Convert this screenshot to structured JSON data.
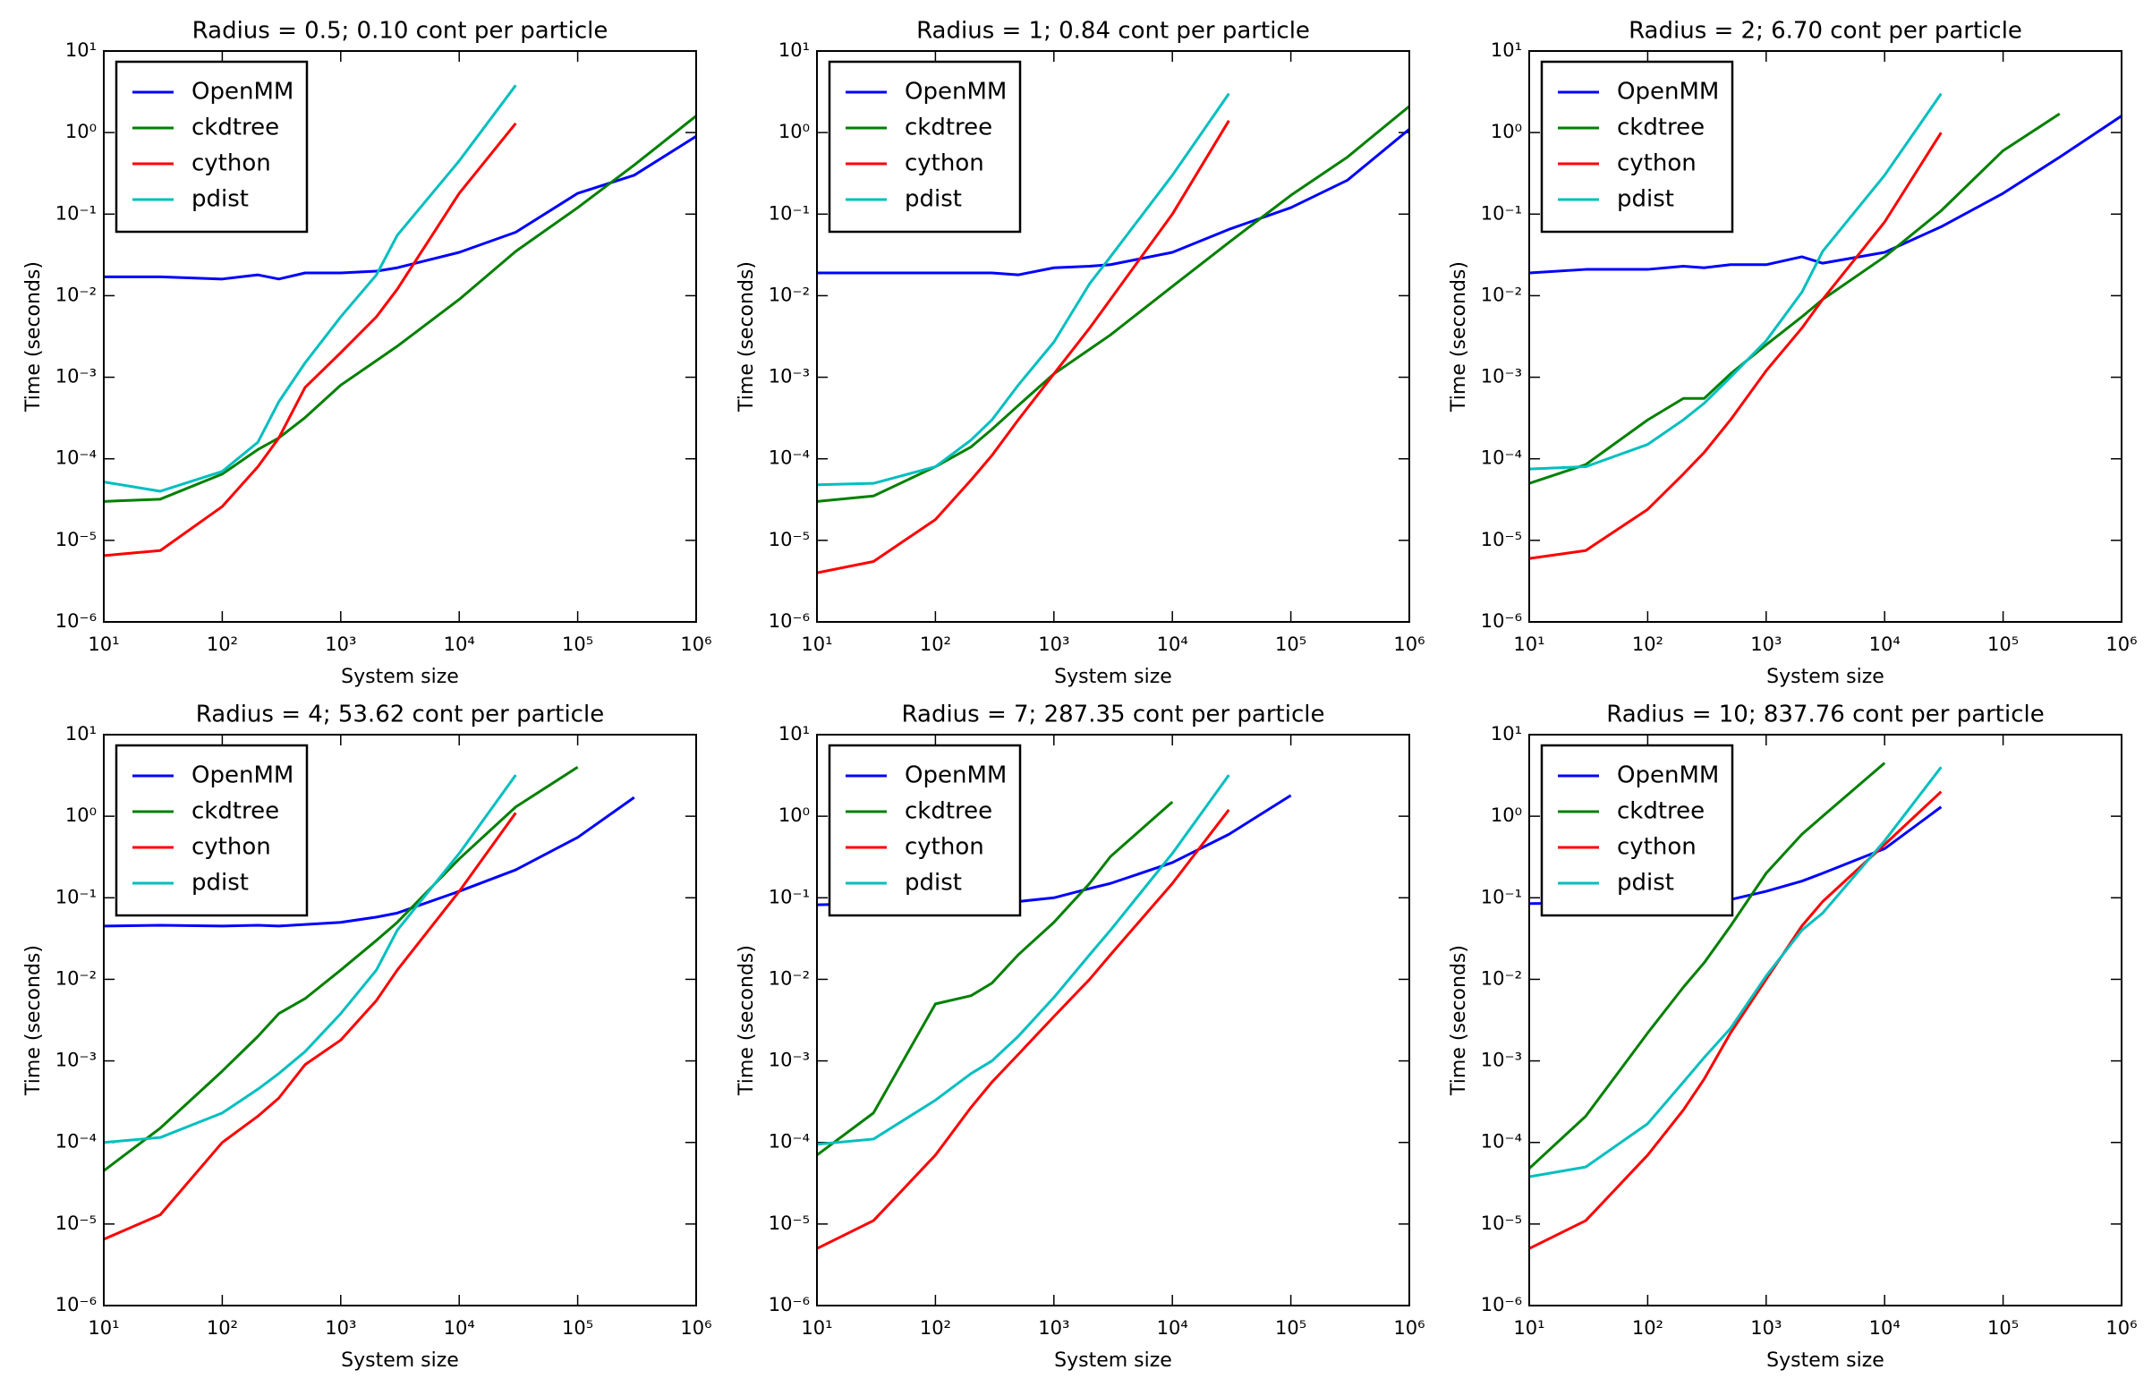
{
  "chart_data": [
    {
      "type": "line",
      "title": "Radius = 0.5; 0.10 cont per particle",
      "xlabel": "System size",
      "ylabel": "Time (seconds)",
      "log_x": true,
      "log_y": true,
      "grid": false,
      "legend": "upper left",
      "xlim": [
        10,
        1000000
      ],
      "ylim": [
        1e-06,
        10
      ],
      "xticks": [
        {
          "value": 10,
          "label": "10¹"
        },
        {
          "value": 100,
          "label": "10²"
        },
        {
          "value": 1000,
          "label": "10³"
        },
        {
          "value": 10000,
          "label": "10⁴"
        },
        {
          "value": 100000,
          "label": "10⁵"
        },
        {
          "value": 1000000,
          "label": "10⁶"
        }
      ],
      "yticks": [
        {
          "value": 1e-06,
          "label": "10⁻⁶"
        },
        {
          "value": 1e-05,
          "label": "10⁻⁵"
        },
        {
          "value": 0.0001,
          "label": "10⁻⁴"
        },
        {
          "value": 0.001,
          "label": "10⁻³"
        },
        {
          "value": 0.01,
          "label": "10⁻²"
        },
        {
          "value": 0.1,
          "label": "10⁻¹"
        },
        {
          "value": 1,
          "label": "10⁰"
        },
        {
          "value": 10,
          "label": "10¹"
        }
      ],
      "x": [
        10,
        30,
        100,
        200,
        300,
        500,
        1000,
        2000,
        3000,
        10000,
        30000,
        100000,
        300000,
        1000000
      ],
      "series": [
        {
          "name": "OpenMM",
          "color": "#0000ff",
          "values": [
            0.017,
            0.017,
            0.016,
            0.018,
            0.016,
            0.019,
            0.019,
            0.02,
            0.022,
            0.034,
            0.06,
            0.18,
            0.3,
            0.9
          ]
        },
        {
          "name": "ckdtree",
          "color": "#008000",
          "values": [
            3e-05,
            3.2e-05,
            6.5e-05,
            0.00013,
            0.00018,
            0.00032,
            0.0008,
            0.0016,
            0.0024,
            0.009,
            0.035,
            0.12,
            0.4,
            1.6
          ]
        },
        {
          "name": "cython",
          "color": "#ff0000",
          "values": [
            6.5e-06,
            7.5e-06,
            2.6e-05,
            8e-05,
            0.00018,
            0.00075,
            0.002,
            0.0055,
            0.012,
            0.18,
            1.3,
            null,
            null,
            null
          ]
        },
        {
          "name": "pdist",
          "color": "#00bfbf",
          "values": [
            5.2e-05,
            4e-05,
            7e-05,
            0.00016,
            0.0005,
            0.0015,
            0.0055,
            0.018,
            0.055,
            0.45,
            3.8,
            null,
            null,
            null
          ]
        }
      ]
    },
    {
      "type": "line",
      "title": "Radius = 1; 0.84 cont per particle",
      "xlabel": "System size",
      "ylabel": "Time (seconds)",
      "log_x": true,
      "log_y": true,
      "grid": false,
      "legend": "upper left",
      "xlim": [
        10,
        1000000
      ],
      "ylim": [
        1e-06,
        10
      ],
      "xticks": [
        {
          "value": 10,
          "label": "10¹"
        },
        {
          "value": 100,
          "label": "10²"
        },
        {
          "value": 1000,
          "label": "10³"
        },
        {
          "value": 10000,
          "label": "10⁴"
        },
        {
          "value": 100000,
          "label": "10⁵"
        },
        {
          "value": 1000000,
          "label": "10⁶"
        }
      ],
      "yticks": [
        {
          "value": 1e-06,
          "label": "10⁻⁶"
        },
        {
          "value": 1e-05,
          "label": "10⁻⁵"
        },
        {
          "value": 0.0001,
          "label": "10⁻⁴"
        },
        {
          "value": 0.001,
          "label": "10⁻³"
        },
        {
          "value": 0.01,
          "label": "10⁻²"
        },
        {
          "value": 0.1,
          "label": "10⁻¹"
        },
        {
          "value": 1,
          "label": "10⁰"
        },
        {
          "value": 10,
          "label": "10¹"
        }
      ],
      "x": [
        10,
        30,
        100,
        200,
        300,
        500,
        1000,
        2000,
        3000,
        10000,
        30000,
        100000,
        300000,
        1000000
      ],
      "series": [
        {
          "name": "OpenMM",
          "color": "#0000ff",
          "values": [
            0.019,
            0.019,
            0.019,
            0.019,
            0.019,
            0.018,
            0.022,
            0.023,
            0.024,
            0.034,
            0.065,
            0.12,
            0.26,
            1.1
          ]
        },
        {
          "name": "ckdtree",
          "color": "#008000",
          "values": [
            3e-05,
            3.5e-05,
            8e-05,
            0.00014,
            0.00023,
            0.00045,
            0.0011,
            0.0022,
            0.0033,
            0.013,
            0.045,
            0.17,
            0.5,
            2.1
          ]
        },
        {
          "name": "cython",
          "color": "#ff0000",
          "values": [
            4e-06,
            5.5e-06,
            1.8e-05,
            5.5e-05,
            0.00011,
            0.0003,
            0.0011,
            0.004,
            0.009,
            0.1,
            1.4,
            null,
            null,
            null
          ]
        },
        {
          "name": "pdist",
          "color": "#00bfbf",
          "values": [
            4.8e-05,
            5e-05,
            8e-05,
            0.00017,
            0.0003,
            0.0008,
            0.0027,
            0.014,
            0.03,
            0.3,
            3,
            null,
            null,
            null
          ]
        }
      ]
    },
    {
      "type": "line",
      "title": "Radius = 2; 6.70 cont per particle",
      "xlabel": "System size",
      "ylabel": "Time (seconds)",
      "log_x": true,
      "log_y": true,
      "grid": false,
      "legend": "upper left",
      "xlim": [
        10,
        1000000
      ],
      "ylim": [
        1e-06,
        10
      ],
      "xticks": [
        {
          "value": 10,
          "label": "10¹"
        },
        {
          "value": 100,
          "label": "10²"
        },
        {
          "value": 1000,
          "label": "10³"
        },
        {
          "value": 10000,
          "label": "10⁴"
        },
        {
          "value": 100000,
          "label": "10⁵"
        },
        {
          "value": 1000000,
          "label": "10⁶"
        }
      ],
      "yticks": [
        {
          "value": 1e-06,
          "label": "10⁻⁶"
        },
        {
          "value": 1e-05,
          "label": "10⁻⁵"
        },
        {
          "value": 0.0001,
          "label": "10⁻⁴"
        },
        {
          "value": 0.001,
          "label": "10⁻³"
        },
        {
          "value": 0.01,
          "label": "10⁻²"
        },
        {
          "value": 0.1,
          "label": "10⁻¹"
        },
        {
          "value": 1,
          "label": "10⁰"
        },
        {
          "value": 10,
          "label": "10¹"
        }
      ],
      "x": [
        10,
        30,
        100,
        200,
        300,
        500,
        1000,
        2000,
        3000,
        10000,
        30000,
        100000,
        300000,
        1000000
      ],
      "series": [
        {
          "name": "OpenMM",
          "color": "#0000ff",
          "values": [
            0.019,
            0.021,
            0.021,
            0.023,
            0.022,
            0.024,
            0.024,
            0.03,
            0.025,
            0.034,
            0.07,
            0.18,
            0.5,
            1.6
          ]
        },
        {
          "name": "ckdtree",
          "color": "#008000",
          "values": [
            5e-05,
            8.5e-05,
            0.0003,
            0.00055,
            0.00055,
            0.0011,
            0.0025,
            0.0055,
            0.009,
            0.03,
            0.11,
            0.6,
            1.7,
            null
          ]
        },
        {
          "name": "cython",
          "color": "#ff0000",
          "values": [
            6e-06,
            7.5e-06,
            2.4e-05,
            6.5e-05,
            0.00012,
            0.0003,
            0.0012,
            0.004,
            0.009,
            0.08,
            1,
            null,
            null,
            null
          ]
        },
        {
          "name": "pdist",
          "color": "#00bfbf",
          "values": [
            7.5e-05,
            8e-05,
            0.00015,
            0.0003,
            0.00048,
            0.001,
            0.0028,
            0.011,
            0.035,
            0.3,
            3,
            null,
            null,
            null
          ]
        }
      ]
    },
    {
      "type": "line",
      "title": "Radius = 4; 53.62 cont per particle",
      "xlabel": "System size",
      "ylabel": "Time (seconds)",
      "log_x": true,
      "log_y": true,
      "grid": false,
      "legend": "upper left",
      "xlim": [
        10,
        1000000
      ],
      "ylim": [
        1e-06,
        10
      ],
      "xticks": [
        {
          "value": 10,
          "label": "10¹"
        },
        {
          "value": 100,
          "label": "10²"
        },
        {
          "value": 1000,
          "label": "10³"
        },
        {
          "value": 10000,
          "label": "10⁴"
        },
        {
          "value": 100000,
          "label": "10⁵"
        },
        {
          "value": 1000000,
          "label": "10⁶"
        }
      ],
      "yticks": [
        {
          "value": 1e-06,
          "label": "10⁻⁶"
        },
        {
          "value": 1e-05,
          "label": "10⁻⁵"
        },
        {
          "value": 0.0001,
          "label": "10⁻⁴"
        },
        {
          "value": 0.001,
          "label": "10⁻³"
        },
        {
          "value": 0.01,
          "label": "10⁻²"
        },
        {
          "value": 0.1,
          "label": "10⁻¹"
        },
        {
          "value": 1,
          "label": "10⁰"
        },
        {
          "value": 10,
          "label": "10¹"
        }
      ],
      "x": [
        10,
        30,
        100,
        200,
        300,
        500,
        1000,
        2000,
        3000,
        10000,
        30000,
        100000,
        300000,
        1000000
      ],
      "series": [
        {
          "name": "OpenMM",
          "color": "#0000ff",
          "values": [
            0.045,
            0.046,
            0.045,
            0.046,
            0.045,
            0.047,
            0.05,
            0.058,
            0.065,
            0.12,
            0.22,
            0.55,
            1.7,
            null
          ]
        },
        {
          "name": "ckdtree",
          "color": "#008000",
          "values": [
            4.5e-05,
            0.00015,
            0.00075,
            0.002,
            0.0038,
            0.0058,
            0.013,
            0.03,
            0.05,
            0.3,
            1.3,
            4,
            null,
            null
          ]
        },
        {
          "name": "cython",
          "color": "#ff0000",
          "values": [
            6.5e-06,
            1.3e-05,
            0.0001,
            0.00021,
            0.00035,
            0.0009,
            0.0018,
            0.0055,
            0.013,
            0.12,
            1.1,
            null,
            null,
            null
          ]
        },
        {
          "name": "pdist",
          "color": "#00bfbf",
          "values": [
            0.0001,
            0.000115,
            0.00023,
            0.00045,
            0.0007,
            0.0013,
            0.0038,
            0.013,
            0.04,
            0.35,
            3.2,
            null,
            null,
            null
          ]
        }
      ]
    },
    {
      "type": "line",
      "title": "Radius = 7; 287.35 cont per particle",
      "xlabel": "System size",
      "ylabel": "Time (seconds)",
      "log_x": true,
      "log_y": true,
      "grid": false,
      "legend": "upper left",
      "xlim": [
        10,
        1000000
      ],
      "ylim": [
        1e-06,
        10
      ],
      "xticks": [
        {
          "value": 10,
          "label": "10¹"
        },
        {
          "value": 100,
          "label": "10²"
        },
        {
          "value": 1000,
          "label": "10³"
        },
        {
          "value": 10000,
          "label": "10⁴"
        },
        {
          "value": 100000,
          "label": "10⁵"
        },
        {
          "value": 1000000,
          "label": "10⁶"
        }
      ],
      "yticks": [
        {
          "value": 1e-06,
          "label": "10⁻⁶"
        },
        {
          "value": 1e-05,
          "label": "10⁻⁵"
        },
        {
          "value": 0.0001,
          "label": "10⁻⁴"
        },
        {
          "value": 0.001,
          "label": "10⁻³"
        },
        {
          "value": 0.01,
          "label": "10⁻²"
        },
        {
          "value": 0.1,
          "label": "10⁻¹"
        },
        {
          "value": 1,
          "label": "10⁰"
        },
        {
          "value": 10,
          "label": "10¹"
        }
      ],
      "x": [
        10,
        30,
        100,
        200,
        300,
        500,
        1000,
        2000,
        3000,
        10000,
        30000,
        100000,
        300000,
        1000000
      ],
      "series": [
        {
          "name": "OpenMM",
          "color": "#0000ff",
          "values": [
            0.082,
            0.085,
            0.083,
            0.084,
            0.084,
            0.09,
            0.1,
            0.13,
            0.15,
            0.27,
            0.6,
            1.8,
            null,
            null
          ]
        },
        {
          "name": "ckdtree",
          "color": "#008000",
          "values": [
            7e-05,
            0.00023,
            0.005,
            0.0063,
            0.009,
            0.02,
            0.05,
            0.15,
            0.32,
            1.5,
            null,
            null,
            null,
            null
          ]
        },
        {
          "name": "cython",
          "color": "#ff0000",
          "values": [
            5e-06,
            1.1e-05,
            7e-05,
            0.00027,
            0.00055,
            0.0012,
            0.0035,
            0.01,
            0.02,
            0.15,
            1.2,
            null,
            null,
            null
          ]
        },
        {
          "name": "pdist",
          "color": "#00bfbf",
          "values": [
            9.5e-05,
            0.00011,
            0.00033,
            0.0007,
            0.001,
            0.002,
            0.006,
            0.02,
            0.04,
            0.35,
            3.2,
            null,
            null,
            null
          ]
        }
      ]
    },
    {
      "type": "line",
      "title": "Radius = 10; 837.76 cont per particle",
      "xlabel": "System size",
      "ylabel": "Time (seconds)",
      "log_x": true,
      "log_y": true,
      "grid": false,
      "legend": "upper left",
      "xlim": [
        10,
        1000000
      ],
      "ylim": [
        1e-06,
        10
      ],
      "xticks": [
        {
          "value": 10,
          "label": "10¹"
        },
        {
          "value": 100,
          "label": "10²"
        },
        {
          "value": 1000,
          "label": "10³"
        },
        {
          "value": 10000,
          "label": "10⁴"
        },
        {
          "value": 100000,
          "label": "10⁵"
        },
        {
          "value": 1000000,
          "label": "10⁶"
        }
      ],
      "yticks": [
        {
          "value": 1e-06,
          "label": "10⁻⁶"
        },
        {
          "value": 1e-05,
          "label": "10⁻⁵"
        },
        {
          "value": 0.0001,
          "label": "10⁻⁴"
        },
        {
          "value": 0.001,
          "label": "10⁻³"
        },
        {
          "value": 0.01,
          "label": "10⁻²"
        },
        {
          "value": 0.1,
          "label": "10⁻¹"
        },
        {
          "value": 1,
          "label": "10⁰"
        },
        {
          "value": 10,
          "label": "10¹"
        }
      ],
      "x": [
        10,
        30,
        100,
        200,
        300,
        500,
        1000,
        2000,
        3000,
        10000,
        30000,
        100000,
        300000,
        1000000
      ],
      "series": [
        {
          "name": "OpenMM",
          "color": "#0000ff",
          "values": [
            0.085,
            0.086,
            0.083,
            0.085,
            0.087,
            0.095,
            0.12,
            0.16,
            0.2,
            0.4,
            1.3,
            null,
            null,
            null
          ]
        },
        {
          "name": "ckdtree",
          "color": "#008000",
          "values": [
            4.8e-05,
            0.00021,
            0.0022,
            0.008,
            0.016,
            0.045,
            0.2,
            0.6,
            1,
            4.5,
            null,
            null,
            null,
            null
          ]
        },
        {
          "name": "cython",
          "color": "#ff0000",
          "values": [
            5e-06,
            1.1e-05,
            7e-05,
            0.00025,
            0.0006,
            0.0022,
            0.01,
            0.045,
            0.09,
            0.45,
            2,
            null,
            null,
            null
          ]
        },
        {
          "name": "pdist",
          "color": "#00bfbf",
          "values": [
            3.8e-05,
            5e-05,
            0.00017,
            0.00055,
            0.0011,
            0.0025,
            0.011,
            0.04,
            0.065,
            0.5,
            4,
            null,
            null,
            null
          ]
        }
      ]
    }
  ]
}
